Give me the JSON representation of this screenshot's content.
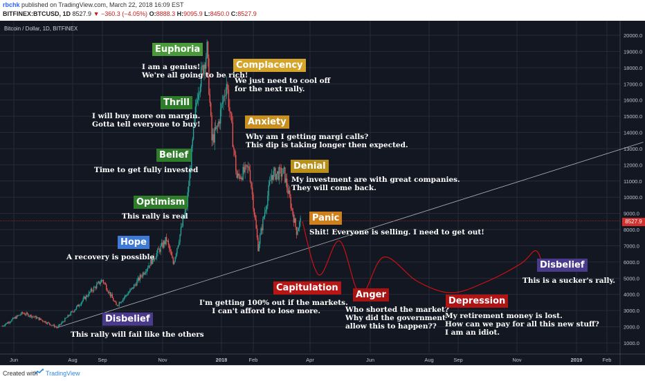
{
  "header": {
    "user": "rbchk",
    "published": "published on TradingView.com, March 22, 2018 16:09 EST",
    "symbol": "BITFINEX:BTCUSD, 1D",
    "last": "8527.9",
    "change": "−360.3 (−4.05%)",
    "open_label": "O:",
    "open": "8888.3",
    "high_label": "H:",
    "high": "9095.9",
    "low_label": "L:",
    "low": "8450.0",
    "close_label": "C:",
    "close": "8527.9"
  },
  "chart_title": "Bitcoin / Dollar, 1D, BITFINEX",
  "price_tag": "8527.9",
  "footer": {
    "created": "Created with",
    "brand": "TradingView"
  },
  "colors": {
    "background": "#131722",
    "up": "#26a69a",
    "down": "#ef5350",
    "projection": "#d01010"
  },
  "annotations": [
    {
      "id": "euphoria",
      "label": "Euphoria",
      "color": "#4a9a3c",
      "text": "I am a genius!\nWe're all going to be rich!"
    },
    {
      "id": "complacency",
      "label": "Complacency",
      "color": "#d4a52a",
      "text": "We just need to cool off\nfor the next rally."
    },
    {
      "id": "thrill",
      "label": "Thrill",
      "color": "#2f7d2a",
      "text": "I will buy more on margin.\nGotta tell everyone to buy!"
    },
    {
      "id": "anxiety",
      "label": "Anxiety",
      "color": "#c99020",
      "text": "Why am I getting margi calls?\nThis dip is taking longer then expected."
    },
    {
      "id": "belief",
      "label": "Belief",
      "color": "#2f7d2a",
      "text": "Time to get fully invested"
    },
    {
      "id": "denial",
      "label": "Denial",
      "color": "#b8901a",
      "text": "My investment are with great companies.\nThey will come back."
    },
    {
      "id": "optimism",
      "label": "Optimism",
      "color": "#2f7d2a",
      "text": "This rally is real"
    },
    {
      "id": "panic",
      "label": "Panic",
      "color": "#d0801a",
      "text": "Shit! Everyone is selling. I need to get out!"
    },
    {
      "id": "hope",
      "label": "Hope",
      "color": "#3f7ad6",
      "text": "A recovery is possible"
    },
    {
      "id": "capitulation",
      "label": "Capitulation",
      "color": "#b81515",
      "text": "I'm getting 100% out if the markets.\n     I can't afford to lose more."
    },
    {
      "id": "anger",
      "label": "Anger",
      "color": "#a81414",
      "text": "Who shorted the market?\nWhy did the government\nallow this to happen??"
    },
    {
      "id": "depression",
      "label": "Depression",
      "color": "#b01414",
      "text": "My retirement money is lost.\nHow can we pay for all this new stuff?\nI am an idiot."
    },
    {
      "id": "disbelief-top",
      "label": "Disbelief",
      "color": "#4a3a8c",
      "text": "This is a sucker's rally."
    },
    {
      "id": "disbelief-bottom",
      "label": "Disbelief",
      "color": "#4a3a8c",
      "text": "This rally will fail like the others"
    }
  ],
  "chart_data": {
    "type": "candlestick",
    "y_unit": "USD",
    "ylim": [
      0,
      20500
    ],
    "y_ticks": [
      "20000.0",
      "19000.0",
      "18000.0",
      "17000.0",
      "16000.0",
      "15000.0",
      "14000.0",
      "13000.0",
      "12000.0",
      "11000.0",
      "10000.0",
      "9000.0",
      "8000.0",
      "7000.0",
      "6000.0",
      "5000.0",
      "4000.0",
      "3000.0",
      "2000.0",
      "1000.0"
    ],
    "x_ticks": [
      "Jun",
      "Aug",
      "Sep",
      "Nov",
      "2018",
      "Feb",
      "Apr",
      "Jun",
      "Aug",
      "Sep",
      "Nov",
      "2019",
      "Feb"
    ],
    "price_path": [
      {
        "date": "2017-05-20",
        "close": 2050
      },
      {
        "date": "2017-06-10",
        "close": 2850
      },
      {
        "date": "2017-06-25",
        "close": 2550
      },
      {
        "date": "2017-07-16",
        "close": 1950
      },
      {
        "date": "2017-08-05",
        "close": 3200
      },
      {
        "date": "2017-08-20",
        "close": 4200
      },
      {
        "date": "2017-09-01",
        "close": 4900
      },
      {
        "date": "2017-09-15",
        "close": 3300
      },
      {
        "date": "2017-10-01",
        "close": 4350
      },
      {
        "date": "2017-10-20",
        "close": 6000
      },
      {
        "date": "2017-11-05",
        "close": 7400
      },
      {
        "date": "2017-11-12",
        "close": 5900
      },
      {
        "date": "2017-11-26",
        "close": 9500
      },
      {
        "date": "2017-12-07",
        "close": 16500
      },
      {
        "date": "2017-12-17",
        "close": 19100
      },
      {
        "date": "2017-12-22",
        "close": 13500
      },
      {
        "date": "2017-12-28",
        "close": 14300
      },
      {
        "date": "2018-01-06",
        "close": 17100
      },
      {
        "date": "2018-01-16",
        "close": 11200
      },
      {
        "date": "2018-01-28",
        "close": 11800
      },
      {
        "date": "2018-02-06",
        "close": 6900
      },
      {
        "date": "2018-02-20",
        "close": 11400
      },
      {
        "date": "2018-03-05",
        "close": 11500
      },
      {
        "date": "2018-03-18",
        "close": 7900
      },
      {
        "date": "2018-03-22",
        "close": 8527.9
      }
    ],
    "projection": [
      {
        "date": "2018-03-24",
        "value": 8500
      },
      {
        "date": "2018-04-10",
        "value": 5200
      },
      {
        "date": "2018-05-01",
        "value": 7300
      },
      {
        "date": "2018-05-22",
        "value": 4000
      },
      {
        "date": "2018-06-15",
        "value": 6300
      },
      {
        "date": "2018-07-20",
        "value": 4800
      },
      {
        "date": "2018-08-25",
        "value": 4100
      },
      {
        "date": "2018-10-01",
        "value": 4800
      },
      {
        "date": "2018-11-05",
        "value": 5900
      },
      {
        "date": "2018-11-20",
        "value": 6700
      },
      {
        "date": "2018-11-27",
        "value": 5900
      }
    ],
    "trendline": [
      {
        "date": "2017-07-16",
        "value": 1950
      },
      {
        "date": "2019-03-10",
        "value": 13400
      }
    ],
    "current_price": 8527.9
  }
}
